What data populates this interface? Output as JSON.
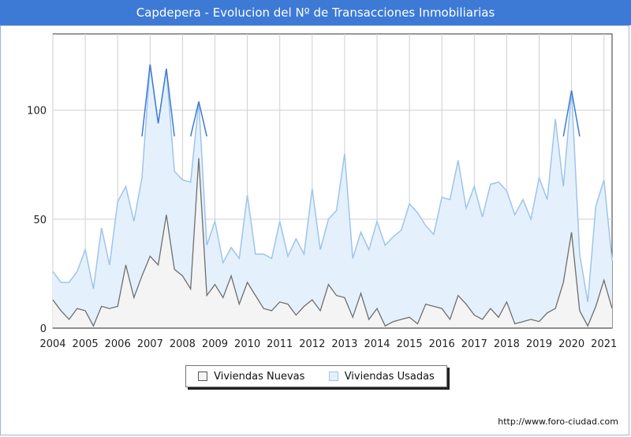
{
  "title": "Capdepera - Evolucion del Nº de Transacciones Inmobiliarias",
  "credit": "http://www.foro-ciudad.com",
  "colors": {
    "title_bg": "#3d7ad6",
    "usadas_line": "#9fc3ec",
    "usadas_fill": "#e4f1fc",
    "usadas_peak": "#3d7ad6",
    "nuevas_line": "#6e6e6e",
    "nuevas_fill": "#f4f4f4"
  },
  "chart_data": {
    "type": "area",
    "x_labels": [
      "2004",
      "2005",
      "2006",
      "2007",
      "2008",
      "2009",
      "2010",
      "2011",
      "2012",
      "2013",
      "2014",
      "2015",
      "2016",
      "2017",
      "2018",
      "2019",
      "2020",
      "2021"
    ],
    "ylim": [
      0,
      135
    ],
    "yticks": [
      0,
      50,
      100
    ],
    "grid": true,
    "legend_position": "bottom-center",
    "series": [
      {
        "name": "Viviendas Nuevas",
        "values": [
          13,
          8,
          4,
          9,
          8,
          1,
          10,
          9,
          10,
          29,
          14,
          24,
          33,
          29,
          52,
          27,
          24,
          18,
          78,
          15,
          20,
          14,
          24,
          11,
          21,
          15,
          9,
          8,
          12,
          11,
          6,
          10,
          13,
          8,
          20,
          15,
          14,
          5,
          16,
          4,
          9,
          1,
          3,
          4,
          5,
          2,
          11,
          10,
          9,
          4,
          15,
          11,
          6,
          4,
          9,
          5,
          12,
          2,
          3,
          4,
          3,
          7,
          9,
          21,
          44,
          8,
          1,
          10,
          22,
          9
        ]
      },
      {
        "name": "Viviendas Usadas",
        "values": [
          26,
          21,
          21,
          26,
          36,
          18,
          46,
          29,
          58,
          65,
          49,
          69,
          121,
          94,
          119,
          72,
          68,
          67,
          104,
          38,
          49,
          30,
          37,
          32,
          61,
          34,
          34,
          32,
          49,
          33,
          41,
          34,
          64,
          36,
          50,
          54,
          80,
          32,
          44,
          36,
          49,
          38,
          42,
          45,
          57,
          53,
          47,
          43,
          60,
          59,
          77,
          55,
          65,
          51,
          66,
          67,
          63,
          52,
          59,
          50,
          69,
          59,
          96,
          65,
          109,
          34,
          12,
          56,
          68,
          31
        ]
      }
    ]
  }
}
